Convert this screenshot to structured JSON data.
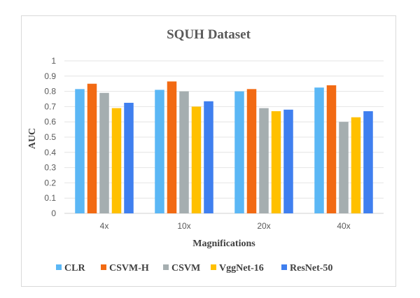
{
  "chart_data": {
    "type": "bar",
    "title": "SQUH Dataset",
    "xlabel": "Magnifications",
    "ylabel": "AUC",
    "ylim": [
      0,
      1
    ],
    "yticks": [
      "0",
      "0.1",
      "0.2",
      "0.3",
      "0.4",
      "0.5",
      "0.6",
      "0.7",
      "0.8",
      "0.9",
      "1"
    ],
    "grid": true,
    "legend_position": "bottom",
    "categories": [
      "4x",
      "10x",
      "20x",
      "40x"
    ],
    "series": [
      {
        "name": "CLR",
        "color": "#5bb7f5",
        "values": [
          0.815,
          0.81,
          0.8,
          0.825
        ]
      },
      {
        "name": "CSVM-H",
        "color": "#f26a13",
        "values": [
          0.85,
          0.865,
          0.815,
          0.84
        ]
      },
      {
        "name": "CSVM",
        "color": "#a5aeb0",
        "values": [
          0.79,
          0.8,
          0.69,
          0.6
        ]
      },
      {
        "name": "VggNet-16",
        "color": "#ffc000",
        "values": [
          0.69,
          0.7,
          0.67,
          0.63
        ]
      },
      {
        "name": "ResNet-50",
        "color": "#3f7fef",
        "values": [
          0.725,
          0.735,
          0.68,
          0.67
        ]
      }
    ]
  }
}
